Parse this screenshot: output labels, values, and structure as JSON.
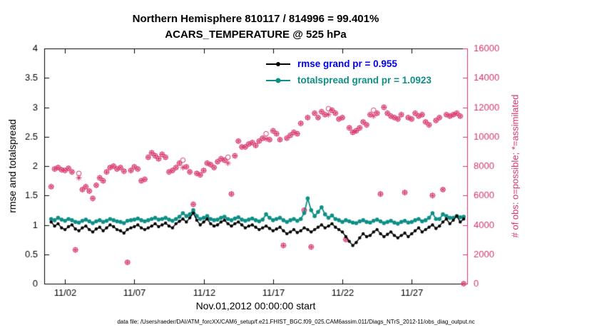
{
  "caption": "data file: /Users/raeder/DAI/ATM_forcXX/CAM6_setup/f.e21.FHIST_BGC.f09_025.CAM6assim.011/Diags_NTrS_2012-11/obs_diag_output.nc",
  "chart_data": {
    "type": "line",
    "title": "Northern Hemisphere 810117 / 814996 = 99.401%",
    "subtitle": "ACARS_TEMPERATURE @ 525 hPa",
    "xlabel": "Nov.01,2012 00:00:00 start",
    "ylabel_left": "rmse and totalspread",
    "ylabel_right": "# of obs: o=possible; *=assimilated",
    "x_axis": {
      "range_days": [
        0.5,
        31
      ],
      "tick_days": [
        2,
        7,
        12,
        17,
        22,
        27
      ],
      "tick_labels": [
        "11/02",
        "11/07",
        "11/12",
        "11/17",
        "11/22",
        "11/27"
      ]
    },
    "left_axis": {
      "range": [
        0,
        4
      ],
      "tick_values": [
        0,
        0.5,
        1,
        1.5,
        2,
        2.5,
        3,
        3.5,
        4
      ],
      "tick_labels": [
        "0",
        "0.5",
        "1",
        "1.5",
        "2",
        "2.5",
        "3",
        "3.5",
        "4"
      ],
      "color": "#000000"
    },
    "right_axis": {
      "range": [
        0,
        16000
      ],
      "tick_values": [
        0,
        2000,
        4000,
        6000,
        8000,
        10000,
        12000,
        14000,
        16000
      ],
      "tick_labels": [
        "0",
        "2000",
        "4000",
        "6000",
        "8000",
        "10000",
        "12000",
        "14000",
        "16000"
      ],
      "color": "#d6336c"
    },
    "time": {
      "start_day": 1.0,
      "step_days": 0.25,
      "count": 120
    },
    "series": {
      "rmse": {
        "label": "rmse grand pr = 0.955",
        "color": "#000000",
        "text_color": "#0000ee",
        "values": [
          1.05,
          0.98,
          1.02,
          0.95,
          0.92,
          0.97,
          1.0,
          0.93,
          0.9,
          0.95,
          0.98,
          0.92,
          0.88,
          0.93,
          0.96,
          0.9,
          0.95,
          1.0,
          0.97,
          0.92,
          0.9,
          0.86,
          0.92,
          0.95,
          0.97,
          1.0,
          0.95,
          0.92,
          0.95,
          0.98,
          1.02,
          0.97,
          1.0,
          1.03,
          0.98,
          0.95,
          1.02,
          1.06,
          1.1,
          1.05,
          1.12,
          1.2,
          1.08,
          1.0,
          1.05,
          1.1,
          1.02,
          0.98,
          1.0,
          1.05,
          1.08,
          1.02,
          0.98,
          1.02,
          1.05,
          1.0,
          0.95,
          0.98,
          1.0,
          0.96,
          0.92,
          0.95,
          0.98,
          0.94,
          0.9,
          0.93,
          0.96,
          0.9,
          0.85,
          0.88,
          0.92,
          0.87,
          0.9,
          0.95,
          0.92,
          0.88,
          0.92,
          0.96,
          1.0,
          0.95,
          0.98,
          1.02,
          0.96,
          0.92,
          0.88,
          0.8,
          0.72,
          0.65,
          0.7,
          0.78,
          0.85,
          0.8,
          0.82,
          0.88,
          0.92,
          0.85,
          0.8,
          0.84,
          0.88,
          0.82,
          0.78,
          0.82,
          0.86,
          0.8,
          0.85,
          0.9,
          0.95,
          0.88,
          0.92,
          0.96,
          1.0,
          0.94,
          0.98,
          1.05,
          1.1,
          1.02,
          1.08,
          1.15,
          1.05,
          1.1
        ]
      },
      "totalspread": {
        "label": "totalspread grand pr = 1.0923",
        "color": "#0e8f86",
        "values": [
          1.1,
          1.08,
          1.12,
          1.09,
          1.07,
          1.1,
          1.08,
          1.05,
          1.04,
          1.07,
          1.09,
          1.06,
          1.03,
          1.06,
          1.08,
          1.05,
          1.07,
          1.1,
          1.08,
          1.06,
          1.05,
          1.03,
          1.07,
          1.08,
          1.09,
          1.11,
          1.08,
          1.06,
          1.08,
          1.1,
          1.12,
          1.09,
          1.1,
          1.12,
          1.09,
          1.07,
          1.1,
          1.14,
          1.2,
          1.15,
          1.18,
          1.25,
          1.15,
          1.1,
          1.12,
          1.15,
          1.1,
          1.08,
          1.09,
          1.12,
          1.14,
          1.1,
          1.08,
          1.11,
          1.13,
          1.09,
          1.07,
          1.09,
          1.11,
          1.08,
          1.06,
          1.09,
          1.18,
          1.12,
          1.08,
          1.1,
          1.12,
          1.08,
          1.05,
          1.08,
          1.1,
          1.07,
          1.1,
          1.2,
          1.45,
          1.25,
          1.15,
          1.22,
          1.3,
          1.18,
          1.12,
          1.16,
          1.1,
          1.08,
          1.05,
          1.08,
          1.06,
          1.04,
          1.03,
          1.06,
          1.08,
          1.05,
          1.04,
          1.07,
          1.09,
          1.06,
          1.03,
          1.05,
          1.07,
          1.04,
          1.02,
          1.05,
          1.07,
          1.04,
          1.05,
          1.08,
          1.1,
          1.06,
          1.08,
          1.12,
          1.2,
          1.1,
          1.1,
          1.18,
          1.15,
          1.12,
          1.12,
          1.15,
          1.13,
          1.14
        ]
      },
      "possible": {
        "marker": "o",
        "values": [
          6600,
          7800,
          7900,
          7750,
          7700,
          7850,
          7600,
          2300,
          7500,
          6400,
          6600,
          6300,
          5800,
          6700,
          7200,
          7000,
          7600,
          7900,
          8000,
          7800,
          7900,
          7650,
          1450,
          7700,
          7950,
          7800,
          7000,
          7100,
          8600,
          8900,
          8700,
          8500,
          8800,
          8600,
          7600,
          7700,
          7900,
          8200,
          8400,
          7950,
          7600,
          5400,
          7500,
          7400,
          7700,
          8200,
          8100,
          7900,
          8300,
          8500,
          8400,
          8600,
          6100,
          8700,
          9700,
          9300,
          9300,
          9500,
          9600,
          9400,
          9700,
          9900,
          10200,
          9800,
          10400,
          10200,
          9800,
          2600,
          9900,
          10100,
          10300,
          10200,
          10900,
          5000,
          11300,
          2500,
          11600,
          11300,
          11700,
          11500,
          11900,
          11800,
          11600,
          11200,
          11300,
          3000,
          10600,
          10300,
          10400,
          10600,
          11000,
          10800,
          11500,
          11800,
          11600,
          6100,
          12000,
          11600,
          11400,
          11300,
          11200,
          11500,
          6200,
          11300,
          11200,
          11600,
          11400,
          11500,
          11000,
          10800,
          6000,
          11100,
          11300,
          6400,
          11500,
          11400,
          11500,
          11600,
          11400,
          0
        ]
      },
      "assimilated": {
        "marker": "*",
        "offsets_from_possible": {
          "8": 300,
          "38": 500,
          "51": 400,
          "62": 350,
          "80": 400,
          "93": 400
        }
      }
    },
    "legend": {
      "position": "top-center-inside",
      "frame": false
    }
  }
}
